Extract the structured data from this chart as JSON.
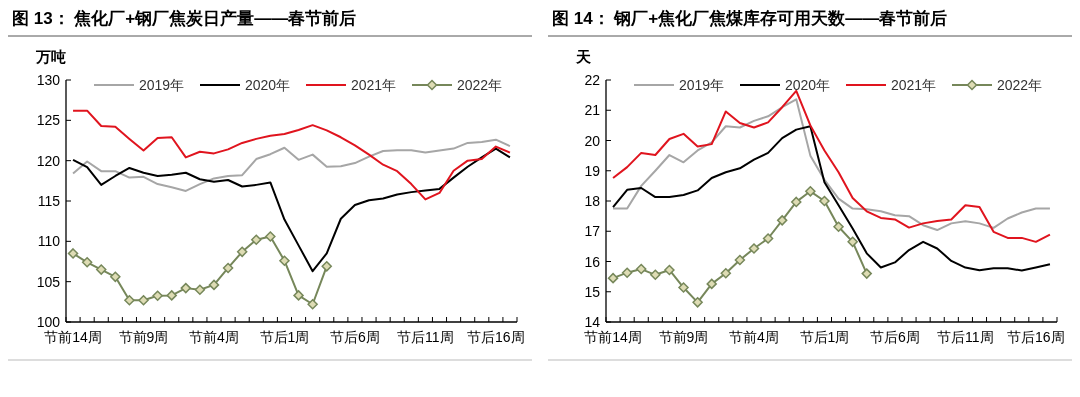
{
  "chart_data": [
    {
      "type": "line",
      "title": "图 13： 焦化厂+钢厂焦炭日产量——春节前后",
      "ylabel": "万吨",
      "categories": [
        "节前14周",
        null,
        null,
        null,
        null,
        "节前9周",
        null,
        null,
        null,
        null,
        "节前4周",
        null,
        null,
        null,
        null,
        "节后1周",
        null,
        null,
        null,
        null,
        "节后6周",
        null,
        null,
        null,
        null,
        "节后11周",
        null,
        null,
        null,
        null,
        "节后16周",
        null
      ],
      "ylim": [
        100,
        130
      ],
      "yticks": [
        100,
        105,
        110,
        115,
        120,
        125,
        130
      ],
      "legend": "top",
      "series": [
        {
          "name": "2019年",
          "color": "#a6a6a6",
          "values": [
            118.4,
            119.9,
            118.7,
            118.7,
            117.9,
            118.0,
            117.1,
            116.7,
            116.25,
            117.1,
            117.8,
            118.1,
            118.2,
            120.2,
            120.8,
            121.6,
            120.1,
            120.75,
            119.25,
            119.3,
            119.7,
            120.5,
            121.2,
            121.3,
            121.3,
            121.0,
            121.25,
            121.5,
            122.2,
            122.3,
            122.6,
            121.8
          ]
        },
        {
          "name": "2020年",
          "color": "#000000",
          "values": [
            120.1,
            119.2,
            117.0,
            118.1,
            119.1,
            118.5,
            118.1,
            118.25,
            118.5,
            117.7,
            117.4,
            117.6,
            116.8,
            117.0,
            117.3,
            112.7,
            109.5,
            106.3,
            108.5,
            112.8,
            114.5,
            115.1,
            115.3,
            115.8,
            116.1,
            116.3,
            116.5,
            117.9,
            119.25,
            120.4,
            121.5,
            120.4
          ]
        },
        {
          "name": "2021年",
          "color": "#e0141e",
          "values": [
            126.2,
            126.2,
            124.3,
            124.2,
            122.7,
            121.25,
            122.8,
            122.9,
            120.4,
            121.1,
            120.9,
            121.4,
            122.2,
            122.7,
            123.1,
            123.3,
            123.8,
            124.4,
            123.75,
            122.9,
            121.9,
            120.75,
            119.5,
            118.7,
            117.1,
            115.2,
            116.0,
            118.75,
            120.0,
            120.2,
            121.75,
            121.0
          ]
        },
        {
          "name": "2022年",
          "color": "#76875a",
          "marker": "diamond",
          "values": [
            108.5,
            107.4,
            106.5,
            105.6,
            102.7,
            102.7,
            103.25,
            103.3,
            104.2,
            104.0,
            104.6,
            106.7,
            108.7,
            110.2,
            110.6,
            107.6,
            103.3,
            102.2,
            106.9,
            null,
            null,
            null,
            null,
            null,
            null,
            null,
            null,
            null,
            null,
            null,
            null,
            null
          ]
        }
      ]
    },
    {
      "type": "line",
      "title": "图 14： 钢厂+焦化厂焦煤库存可用天数——春节前后",
      "ylabel": "天",
      "categories": [
        "节前14周",
        null,
        null,
        null,
        null,
        "节前9周",
        null,
        null,
        null,
        null,
        "节前4周",
        null,
        null,
        null,
        null,
        "节后1周",
        null,
        null,
        null,
        null,
        "节后6周",
        null,
        null,
        null,
        null,
        "节后11周",
        null,
        null,
        null,
        null,
        "节后16周",
        null
      ],
      "ylim": [
        14,
        22
      ],
      "yticks": [
        14,
        15,
        16,
        17,
        18,
        19,
        20,
        21,
        22
      ],
      "legend": "top",
      "series": [
        {
          "name": "2019年",
          "color": "#a6a6a6",
          "values": [
            17.75,
            17.75,
            18.5,
            19.0,
            19.52,
            19.28,
            19.67,
            19.94,
            20.47,
            20.43,
            20.65,
            20.8,
            21.1,
            21.36,
            19.5,
            18.7,
            18.08,
            17.75,
            17.73,
            17.66,
            17.53,
            17.5,
            17.2,
            17.04,
            17.26,
            17.33,
            17.26,
            17.11,
            17.42,
            17.62,
            17.75,
            17.75
          ]
        },
        {
          "name": "2020年",
          "color": "#000000",
          "values": [
            17.8,
            18.37,
            18.43,
            18.13,
            18.13,
            18.2,
            18.35,
            18.76,
            18.95,
            19.08,
            19.37,
            19.59,
            20.08,
            20.36,
            20.47,
            18.62,
            17.86,
            17.09,
            16.27,
            15.8,
            15.97,
            16.38,
            16.65,
            16.43,
            16.02,
            15.8,
            15.71,
            15.78,
            15.78,
            15.7,
            15.8,
            15.91
          ]
        },
        {
          "name": "2021年",
          "color": "#e0141e",
          "values": [
            18.76,
            19.12,
            19.59,
            19.52,
            20.05,
            20.22,
            19.8,
            19.88,
            20.96,
            20.58,
            20.43,
            20.6,
            21.1,
            21.64,
            20.5,
            19.67,
            18.95,
            18.1,
            17.66,
            17.44,
            17.39,
            17.12,
            17.26,
            17.34,
            17.39,
            17.86,
            17.8,
            16.98,
            16.78,
            16.78,
            16.65,
            16.89
          ]
        },
        {
          "name": "2022年",
          "color": "#76875a",
          "marker": "diamond",
          "values": [
            15.45,
            15.63,
            15.75,
            15.56,
            15.72,
            15.14,
            14.65,
            15.26,
            15.61,
            16.05,
            16.43,
            16.76,
            17.36,
            17.97,
            18.32,
            18.0,
            17.15,
            16.65,
            15.6,
            null,
            null,
            null,
            null,
            null,
            null,
            null,
            null,
            null,
            null,
            null,
            null,
            null
          ]
        }
      ]
    }
  ]
}
